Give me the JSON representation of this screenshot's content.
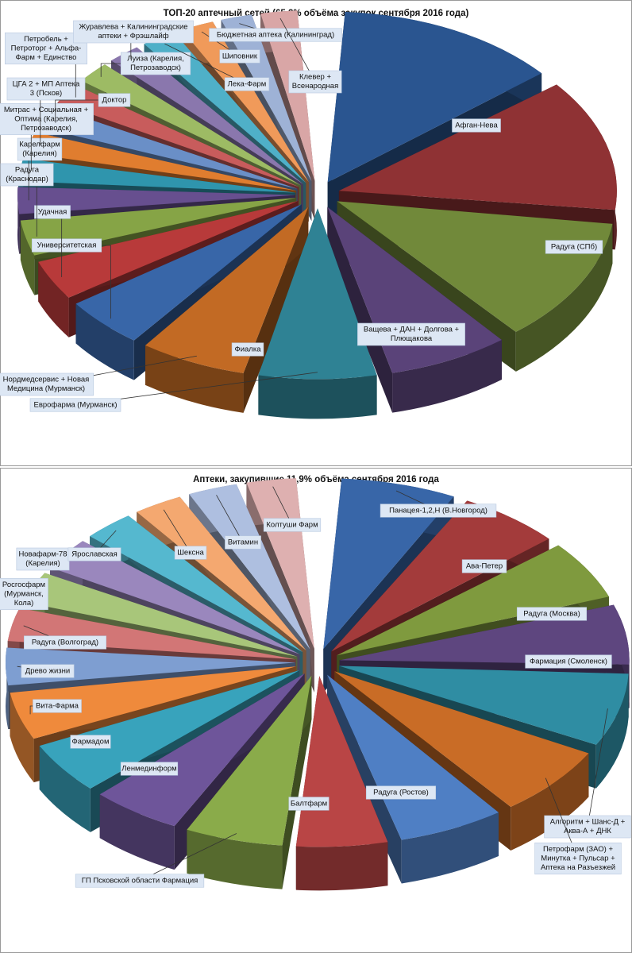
{
  "chart_data": [
    {
      "type": "pie",
      "title": "ТОП-20 аптечный сетей (65,8% объёма закупок сентября 2016 года)",
      "categories": [
        "Афган-Нева",
        "Радуга (СПб)",
        "Ващева + ДАН + Долгова + Плющакова",
        "Фиалка",
        "Еврофарма (Мурманск)",
        "Нордмедсервис + Новая Медицина (Мурманск)",
        "Университетская",
        "Удачная",
        "Радуга (Краснодар)",
        "Карелфарм (Карелия)",
        "Митрас + Социальная + Оптима (Карелия, Петрозаводск)",
        "ЦГА 2 + МП Аптека 3 (Псков)",
        "Доктор",
        "Петробель + Петроторг + Альфа-Фарм + Единство",
        "Луиза (Карелия, Петрозаводск)",
        "Журавлева + Калининградские аптеки + Фрэшлайф",
        "Лека-Фарм",
        "Шиповник",
        "Бюджетная аптека (Калининград)",
        "Клевер + Всенародная"
      ],
      "values": [
        13.0,
        12.5,
        11.8,
        7.2,
        7.0,
        6.4,
        5.0,
        4.0,
        3.6,
        2.8,
        2.4,
        2.3,
        2.3,
        2.2,
        2.3,
        2.2,
        2.3,
        2.2,
        2.1,
        2.4
      ],
      "colors": [
        "#2a5590",
        "#8f3234",
        "#71893a",
        "#5a4379",
        "#2f8294",
        "#c26a24",
        "#3866a8",
        "#b83a3a",
        "#86a446",
        "#674f8f",
        "#2f95ad",
        "#e07d2f",
        "#6a8fc7",
        "#c85c5c",
        "#9dbb64",
        "#8a77ad",
        "#4fb0c8",
        "#f09a5a",
        "#9eb2d6",
        "#d9a6a6"
      ]
    },
    {
      "type": "pie",
      "title": "Аптеки, закупившие 11,9% объёма сентября 2016 года",
      "categories": [
        "Панацея-1,2,Н (В.Новгород)",
        "Ава-Петер",
        "Радуга (Москва)",
        "Фармация (Смоленск)",
        "Алгоритм + Шанс-Д + Аква-А + ДНК",
        "Петрофарм (ЗАО) + Минутка + Пульсар + Аптека на Разъезжей",
        "Радуга (Ростов)",
        "Балтфарм",
        "ГП Псковской области Фармация",
        "Ленмединформ",
        "Фармадом",
        "Вита-Фарма",
        "Древо жизни",
        "Радуга (Волгоград)",
        "Росгосфарм (Мурманск, Кола)",
        "Новафарм-78 (Карелия)",
        "Ярославская",
        "Шексна",
        "Витамин",
        "Колтуши Фарм"
      ],
      "values": [
        7.0,
        6.3,
        6.1,
        6.2,
        7.5,
        7.2,
        6.5,
        5.6,
        6.0,
        5.6,
        5.4,
        5.0,
        4.0,
        3.6,
        3.4,
        3.5,
        3.3,
        3.2,
        3.2,
        3.2
      ],
      "colors": [
        "#3866a8",
        "#a33b3b",
        "#7f9a3e",
        "#5e467f",
        "#2f8da3",
        "#c96c26",
        "#4f7fc4",
        "#b94545",
        "#8aab4a",
        "#6e559a",
        "#38a3bc",
        "#ef8a3c",
        "#7e9ed1",
        "#d27676",
        "#a8c67a",
        "#9a87bd",
        "#55b8cf",
        "#f4a870",
        "#aebfe0",
        "#deb0b0"
      ]
    }
  ]
}
